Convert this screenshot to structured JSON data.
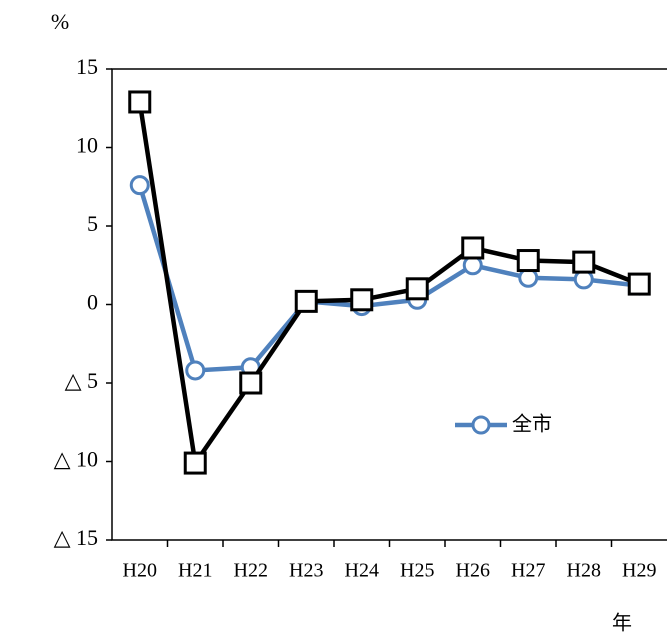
{
  "chart_data": {
    "type": "line",
    "y_unit": "%",
    "x_label": "年",
    "categories": [
      "H20",
      "H21",
      "H22",
      "H23",
      "H24",
      "H25",
      "H26",
      "H27",
      "H28",
      "H29"
    ],
    "series": [
      {
        "name": "全市",
        "color": "#4f81bd",
        "marker": "circle",
        "values": [
          7.6,
          -4.2,
          -4.0,
          0.2,
          -0.1,
          0.3,
          2.5,
          1.7,
          1.6,
          1.2
        ]
      },
      {
        "color": "#000000",
        "marker": "square",
        "values": [
          12.9,
          -10.1,
          -5.0,
          0.2,
          0.3,
          1.0,
          3.6,
          2.8,
          2.7,
          1.3
        ]
      }
    ],
    "ylim": [
      -15,
      15
    ],
    "yticks": [
      {
        "value": -15,
        "label": "△ 15"
      },
      {
        "value": -10,
        "label": "△ 10"
      },
      {
        "value": -5,
        "label": "△ 5"
      },
      0,
      5,
      10,
      15
    ],
    "grid": false,
    "legend": "right"
  }
}
